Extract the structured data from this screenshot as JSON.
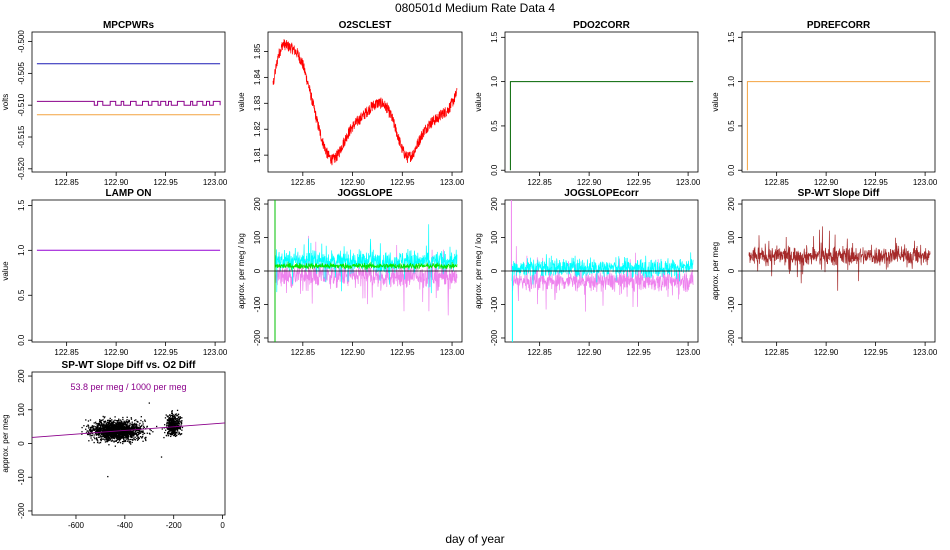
{
  "page": {
    "main_title": "080501d   Medium Rate Data 4",
    "xlabel": "day of year"
  },
  "chart_data": [
    {
      "id": "mpcpwrs",
      "type": "line",
      "title": "MPCPWRs",
      "ylabel": "volts",
      "xlim": [
        122.815,
        123.01
      ],
      "ylim": [
        -0.5205,
        -0.4985
      ],
      "xticks": [
        122.85,
        122.9,
        122.95,
        123.0
      ],
      "xtick_labels": [
        "122.85",
        "122.90",
        "122.95",
        "123.00"
      ],
      "yticks": [
        -0.52,
        -0.515,
        -0.51,
        -0.505,
        -0.5
      ],
      "ytick_labels": [
        "-0.520",
        "-0.515",
        "-0.510",
        "-0.505",
        "-0.500"
      ],
      "series": [
        {
          "color": "#1b1bb5",
          "x": [
            122.82,
            123.005
          ],
          "y": [
            -0.5035,
            -0.5035
          ]
        },
        {
          "color": "#8b008b",
          "x": [
            122.82,
            122.8725,
            122.8725,
            123.005
          ],
          "y": [
            -0.5094,
            -0.5094,
            -0.51,
            -0.51
          ],
          "flicker": [
            122.8725,
            123.005,
            -0.5094,
            -0.51
          ]
        },
        {
          "color": "#f4a340",
          "x": [
            122.82,
            123.005
          ],
          "y": [
            -0.5115,
            -0.5115
          ]
        }
      ]
    },
    {
      "id": "o2sclest",
      "type": "line",
      "title": "O2SCLEST",
      "ylabel": "value",
      "xlim": [
        122.815,
        123.01
      ],
      "ylim": [
        1.8035,
        1.8575
      ],
      "xticks": [
        122.85,
        122.9,
        122.95,
        123.0
      ],
      "xtick_labels": [
        "122.85",
        "122.90",
        "122.95",
        "123.00"
      ],
      "yticks": [
        1.81,
        1.82,
        1.83,
        1.84,
        1.85
      ],
      "ytick_labels": [
        "1.81",
        "1.82",
        "1.83",
        "1.84",
        "1.85"
      ],
      "series": [
        {
          "color": "#ff0000",
          "x": [
            122.82,
            122.825,
            122.83,
            122.835,
            122.84,
            122.845,
            122.85,
            122.855,
            122.86,
            122.865,
            122.87,
            122.875,
            122.88,
            122.885,
            122.89,
            122.895,
            122.9,
            122.905,
            122.91,
            122.915,
            122.92,
            122.925,
            122.93,
            122.935,
            122.94,
            122.945,
            122.95,
            122.955,
            122.96,
            122.965,
            122.97,
            122.975,
            122.98,
            122.985,
            122.99,
            122.995,
            123.0,
            123.005
          ],
          "y": [
            1.837,
            1.848,
            1.853,
            1.852,
            1.851,
            1.849,
            1.845,
            1.838,
            1.83,
            1.822,
            1.815,
            1.81,
            1.808,
            1.81,
            1.814,
            1.818,
            1.821,
            1.823,
            1.825,
            1.827,
            1.829,
            1.83,
            1.83,
            1.828,
            1.824,
            1.818,
            1.812,
            1.809,
            1.81,
            1.814,
            1.818,
            1.821,
            1.823,
            1.824,
            1.826,
            1.827,
            1.83,
            1.834
          ],
          "noise": 0.0022
        }
      ]
    },
    {
      "id": "pdo2corr",
      "type": "line",
      "title": "PDO2CORR",
      "ylabel": "value",
      "xlim": [
        122.815,
        123.01
      ],
      "ylim": [
        -0.02,
        1.56
      ],
      "xticks": [
        122.85,
        122.9,
        122.95,
        123.0
      ],
      "xtick_labels": [
        "122.85",
        "122.90",
        "122.95",
        "123.00"
      ],
      "yticks": [
        0.0,
        0.5,
        1.0,
        1.5
      ],
      "ytick_labels": [
        "0.0",
        "0.5",
        "1.0",
        "1.5"
      ],
      "series": [
        {
          "color": "#006400",
          "x": [
            122.8205,
            122.8205,
            123.005
          ],
          "y": [
            0,
            1,
            1
          ]
        }
      ]
    },
    {
      "id": "pdrefcorr",
      "type": "line",
      "title": "PDREFCORR",
      "ylabel": "value",
      "xlim": [
        122.815,
        123.01
      ],
      "ylim": [
        -0.02,
        1.56
      ],
      "xticks": [
        122.85,
        122.9,
        122.95,
        123.0
      ],
      "xtick_labels": [
        "122.85",
        "122.90",
        "122.95",
        "123.00"
      ],
      "yticks": [
        0.0,
        0.5,
        1.0,
        1.5
      ],
      "ytick_labels": [
        "0.0",
        "0.5",
        "1.0",
        "1.5"
      ],
      "series": [
        {
          "color": "#f4a340",
          "x": [
            122.8205,
            122.8205,
            123.005
          ],
          "y": [
            0,
            1,
            1
          ]
        }
      ]
    },
    {
      "id": "lampon",
      "type": "line",
      "title": "LAMP ON",
      "ylabel": "value",
      "xlim": [
        122.815,
        123.01
      ],
      "ylim": [
        -0.02,
        1.56
      ],
      "xticks": [
        122.85,
        122.9,
        122.95,
        123.0
      ],
      "xtick_labels": [
        "122.85",
        "122.90",
        "122.95",
        "123.00"
      ],
      "yticks": [
        0.0,
        0.5,
        1.0,
        1.5
      ],
      "ytick_labels": [
        "0.0",
        "0.5",
        "1.0",
        "1.5"
      ],
      "series": [
        {
          "color": "#9400d3",
          "x": [
            122.82,
            123.005
          ],
          "y": [
            1,
            1
          ]
        }
      ]
    },
    {
      "id": "jogslope",
      "type": "line",
      "title": "JOGSLOPE",
      "ylabel": "approx. per meg / log",
      "xlim": [
        122.815,
        123.01
      ],
      "ylim": [
        -212,
        212
      ],
      "xticks": [
        122.85,
        122.9,
        122.95,
        123.0
      ],
      "xtick_labels": [
        "122.85",
        "122.90",
        "122.95",
        "123.00"
      ],
      "yticks": [
        -200,
        -100,
        0,
        100,
        200
      ],
      "ytick_labels": [
        "-200",
        "-100",
        "0",
        "100",
        "200"
      ],
      "hline": 0,
      "series": [
        {
          "color": "#ee82ee",
          "x": [
            122.822,
            123.005
          ],
          "y": [
            -15,
            -15
          ],
          "noise": 35,
          "spikes": 22,
          "spike_amp": 75
        },
        {
          "color": "#00ffff",
          "x": [
            122.822,
            123.005
          ],
          "y": [
            30,
            30
          ],
          "noise": 30,
          "spikes": 22,
          "spike_amp": 70
        },
        {
          "color": "#00e600",
          "x": [
            122.822,
            123.005
          ],
          "y": [
            15,
            15
          ],
          "noise": 9,
          "spikes": 0,
          "spike_amp": 0
        },
        {
          "color": "#00c000",
          "x": [
            122.822,
            122.822
          ],
          "y": [
            -212,
            212
          ]
        }
      ]
    },
    {
      "id": "jogslopecorr",
      "type": "line",
      "title": "JOGSLOPEcorr",
      "ylabel": "approx. per meg / log",
      "xlim": [
        122.815,
        123.01
      ],
      "ylim": [
        -212,
        212
      ],
      "xticks": [
        122.85,
        122.9,
        122.95,
        123.0
      ],
      "xtick_labels": [
        "122.85",
        "122.90",
        "122.95",
        "123.00"
      ],
      "yticks": [
        -200,
        -100,
        0,
        100,
        200
      ],
      "ytick_labels": [
        "-200",
        "-100",
        "0",
        "100",
        "200"
      ],
      "hline": 0,
      "series": [
        {
          "color": "#ee82ee",
          "x": [
            122.822,
            123.005
          ],
          "y": [
            -30,
            -30
          ],
          "noise": 30,
          "spikes": 24,
          "spike_amp": 70
        },
        {
          "color": "#00ffff",
          "x": [
            122.822,
            123.005
          ],
          "y": [
            10,
            10
          ],
          "noise": 28,
          "spikes": 14,
          "spike_amp": 45
        },
        {
          "color": "#ee82ee",
          "x": [
            122.8215,
            122.8215
          ],
          "y": [
            0,
            212
          ]
        },
        {
          "color": "#00ffff",
          "x": [
            122.8225,
            122.8225
          ],
          "y": [
            -212,
            0
          ]
        }
      ]
    },
    {
      "id": "spwtdiff",
      "type": "line",
      "title": "SP-WT Slope Diff",
      "ylabel": "approx. per meg",
      "xlim": [
        122.815,
        123.01
      ],
      "ylim": [
        -212,
        212
      ],
      "xticks": [
        122.85,
        122.9,
        122.95,
        123.0
      ],
      "xtick_labels": [
        "122.85",
        "122.90",
        "122.95",
        "123.00"
      ],
      "yticks": [
        -200,
        -100,
        0,
        100,
        200
      ],
      "ytick_labels": [
        "-200",
        "-100",
        "0",
        "100",
        "200"
      ],
      "hline": 0,
      "series": [
        {
          "color": "#a52a2a",
          "x": [
            122.822,
            123.005
          ],
          "y": [
            45,
            45
          ],
          "noise": 28,
          "spikes": 22,
          "spike_amp": 70
        }
      ]
    },
    {
      "id": "scatter",
      "type": "scatter",
      "title": "SP-WT Slope Diff vs. O2 Diff",
      "ylabel": "approx. per meg",
      "xlim": [
        -780,
        10
      ],
      "ylim": [
        -212,
        212
      ],
      "xticks": [
        -600,
        -400,
        -200,
        0
      ],
      "xtick_labels": [
        "-600",
        "-400",
        "-200",
        "0"
      ],
      "yticks": [
        -200,
        -100,
        0,
        100,
        200
      ],
      "ytick_labels": [
        "-200",
        "-100",
        "0",
        "100",
        "200"
      ],
      "annotation": "53.8 per meg / 1000 per meg",
      "annotation_color": "#8b008b",
      "fit": {
        "color": "#8b008b",
        "x": [
          -780,
          10
        ],
        "y": [
          18,
          61
        ]
      },
      "clusters": [
        {
          "x_center": -430,
          "x_spread": 95,
          "y_center": 38,
          "y_spread": 24,
          "n": 1700
        },
        {
          "x_center": -200,
          "x_spread": 28,
          "y_center": 55,
          "y_spread": 26,
          "n": 450
        }
      ]
    }
  ]
}
